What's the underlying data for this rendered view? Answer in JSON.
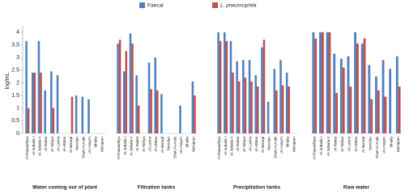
{
  "chart_data": {
    "type": "bar",
    "ylabel": "log/mL",
    "series": [
      {
        "name": "Faecal",
        "color": "#4f81bd"
      },
      {
        "name": "L. pneumophila",
        "color": "#c0504d"
      }
    ],
    "ylim": [
      0,
      4.25
    ],
    "yticks": [
      0,
      0.5,
      1,
      1.5,
      2,
      2.5,
      3,
      3.5,
      4
    ],
    "grid": false,
    "panels": [
      {
        "title": "Water coming out of plant",
        "categories": [
          "Al-Rawadhiya",
          "Al-Jubaila I",
          "Al-Jubaila II",
          "Al-Rabat",
          "Al-Tahiya",
          "Al-Lahmi",
          "Al-Abbas",
          "Al-Ma'aqil",
          "Hamdan",
          "Shatt Al-Arab",
          "Un.mayen",
          "Mhalla",
          "Muhajran"
        ],
        "series": [
          {
            "values": [
              3.65,
              2.4,
              3.65,
              1.7,
              2.45,
              2.3,
              null,
              null,
              1.5,
              1.45,
              1.35,
              null,
              null
            ]
          },
          {
            "values": [
              1.0,
              2.4,
              2.4,
              null,
              1.0,
              null,
              null,
              1.45,
              null,
              null,
              null,
              null,
              null
            ]
          }
        ]
      },
      {
        "title": "Filtration tanks",
        "categories": [
          "Al-Rawadhiya",
          "Al-Jubaila I",
          "Al-Jubaila II",
          "Al-Rabat",
          "Al-Tahiya",
          "Al-Lahmi",
          "Al-Abbas",
          "Al-Ma'aqil",
          "Hamdan",
          "Shatt Al-Arab",
          "Un.mayen",
          "Mhalla",
          "Muhajran"
        ],
        "series": [
          {
            "values": [
              3.55,
              2.45,
              3.95,
              2.3,
              null,
              2.8,
              3.0,
              1.55,
              null,
              null,
              1.1,
              null,
              2.05
            ]
          },
          {
            "values": [
              3.7,
              3.25,
              3.55,
              1.1,
              null,
              1.75,
              1.7,
              null,
              null,
              null,
              null,
              null,
              1.5
            ]
          }
        ]
      },
      {
        "title": "Precipitation tanks",
        "categories": [
          "Al-Rawadhiya",
          "Al-Jubaila I",
          "Al-Jubaila II",
          "Al-Rabat",
          "Al-Tahiya",
          "Al-Lahmi",
          "Al-Abbas",
          "Al-Ma'aqil",
          "Hamdan",
          "Shatt Al-Arab",
          "Un.mayen",
          "Mhalla",
          "Muhajran"
        ],
        "series": [
          {
            "values": [
              4.0,
              4.0,
              3.65,
              2.85,
              2.9,
              2.9,
              2.3,
              3.4,
              1.25,
              2.55,
              2.9,
              2.4,
              null
            ]
          },
          {
            "values": [
              3.65,
              3.65,
              2.4,
              2.05,
              2.2,
              2.05,
              1.85,
              3.7,
              null,
              1.7,
              1.9,
              1.85,
              null
            ]
          }
        ]
      },
      {
        "title": "Raw water",
        "categories": [
          "Al-Rawadhiya",
          "Al-Jubaila I",
          "Al-Jubaila II",
          "Al-Rabat",
          "Al-Tahiya",
          "Al-Lahmi",
          "Al-Abbas",
          "Al-Ma'aqil",
          "Hamdan",
          "Shatt Al-Arab",
          "Un.mayen",
          "Mhalla",
          "Muhajran"
        ],
        "series": [
          {
            "values": [
              4.0,
              4.0,
              4.0,
              3.15,
              2.95,
              3.05,
              4.0,
              3.55,
              2.7,
              2.25,
              2.9,
              2.55,
              3.05
            ]
          },
          {
            "values": [
              3.75,
              4.0,
              4.0,
              1.6,
              2.6,
              1.85,
              3.55,
              3.75,
              1.35,
              1.7,
              1.45,
              null,
              1.85
            ]
          }
        ]
      }
    ]
  }
}
